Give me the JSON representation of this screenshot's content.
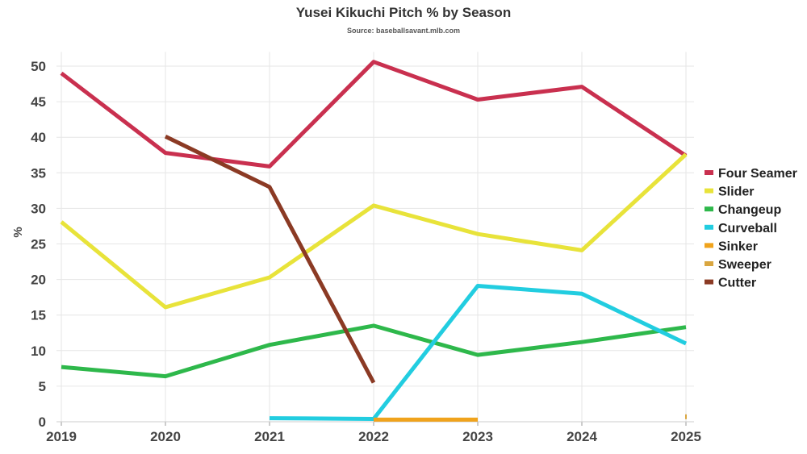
{
  "chart_data": {
    "type": "line",
    "title": "Yusei Kikuchi Pitch % by Season",
    "subtitle": "Source: baseballsavant.mlb.com",
    "xlabel": "",
    "ylabel": "%",
    "x": [
      "2019",
      "2020",
      "2021",
      "2022",
      "2023",
      "2024",
      "2025"
    ],
    "yticks": [
      "0",
      "5",
      "10",
      "15",
      "20",
      "25",
      "30",
      "35",
      "40",
      "45",
      "50"
    ],
    "ylim": [
      0,
      52
    ],
    "grid": true,
    "legend_position": "right",
    "series": [
      {
        "name": "Four Seamer",
        "color": "#c9304f",
        "values": [
          49.0,
          37.8,
          35.9,
          50.6,
          45.3,
          47.1,
          37.4
        ]
      },
      {
        "name": "Slider",
        "color": "#e8e33a",
        "values": [
          28.1,
          16.1,
          20.3,
          30.4,
          26.4,
          24.1,
          37.6
        ]
      },
      {
        "name": "Changeup",
        "color": "#2eb84b",
        "values": [
          7.7,
          6.4,
          10.8,
          13.5,
          9.4,
          11.2,
          13.3
        ]
      },
      {
        "name": "Curveball",
        "color": "#22cde0",
        "values": [
          null,
          null,
          0.5,
          0.4,
          19.1,
          18.0,
          11.0
        ]
      },
      {
        "name": "Sinker",
        "color": "#f0a31c",
        "values": [
          null,
          null,
          null,
          0.3,
          0.3,
          null,
          null
        ]
      },
      {
        "name": "Sweeper",
        "color": "#d9a640",
        "values": [
          null,
          null,
          null,
          null,
          null,
          null,
          0.7
        ]
      },
      {
        "name": "Cutter",
        "color": "#8b3a24",
        "values": [
          null,
          40.1,
          33.0,
          5.5,
          null,
          null,
          null
        ]
      }
    ]
  }
}
